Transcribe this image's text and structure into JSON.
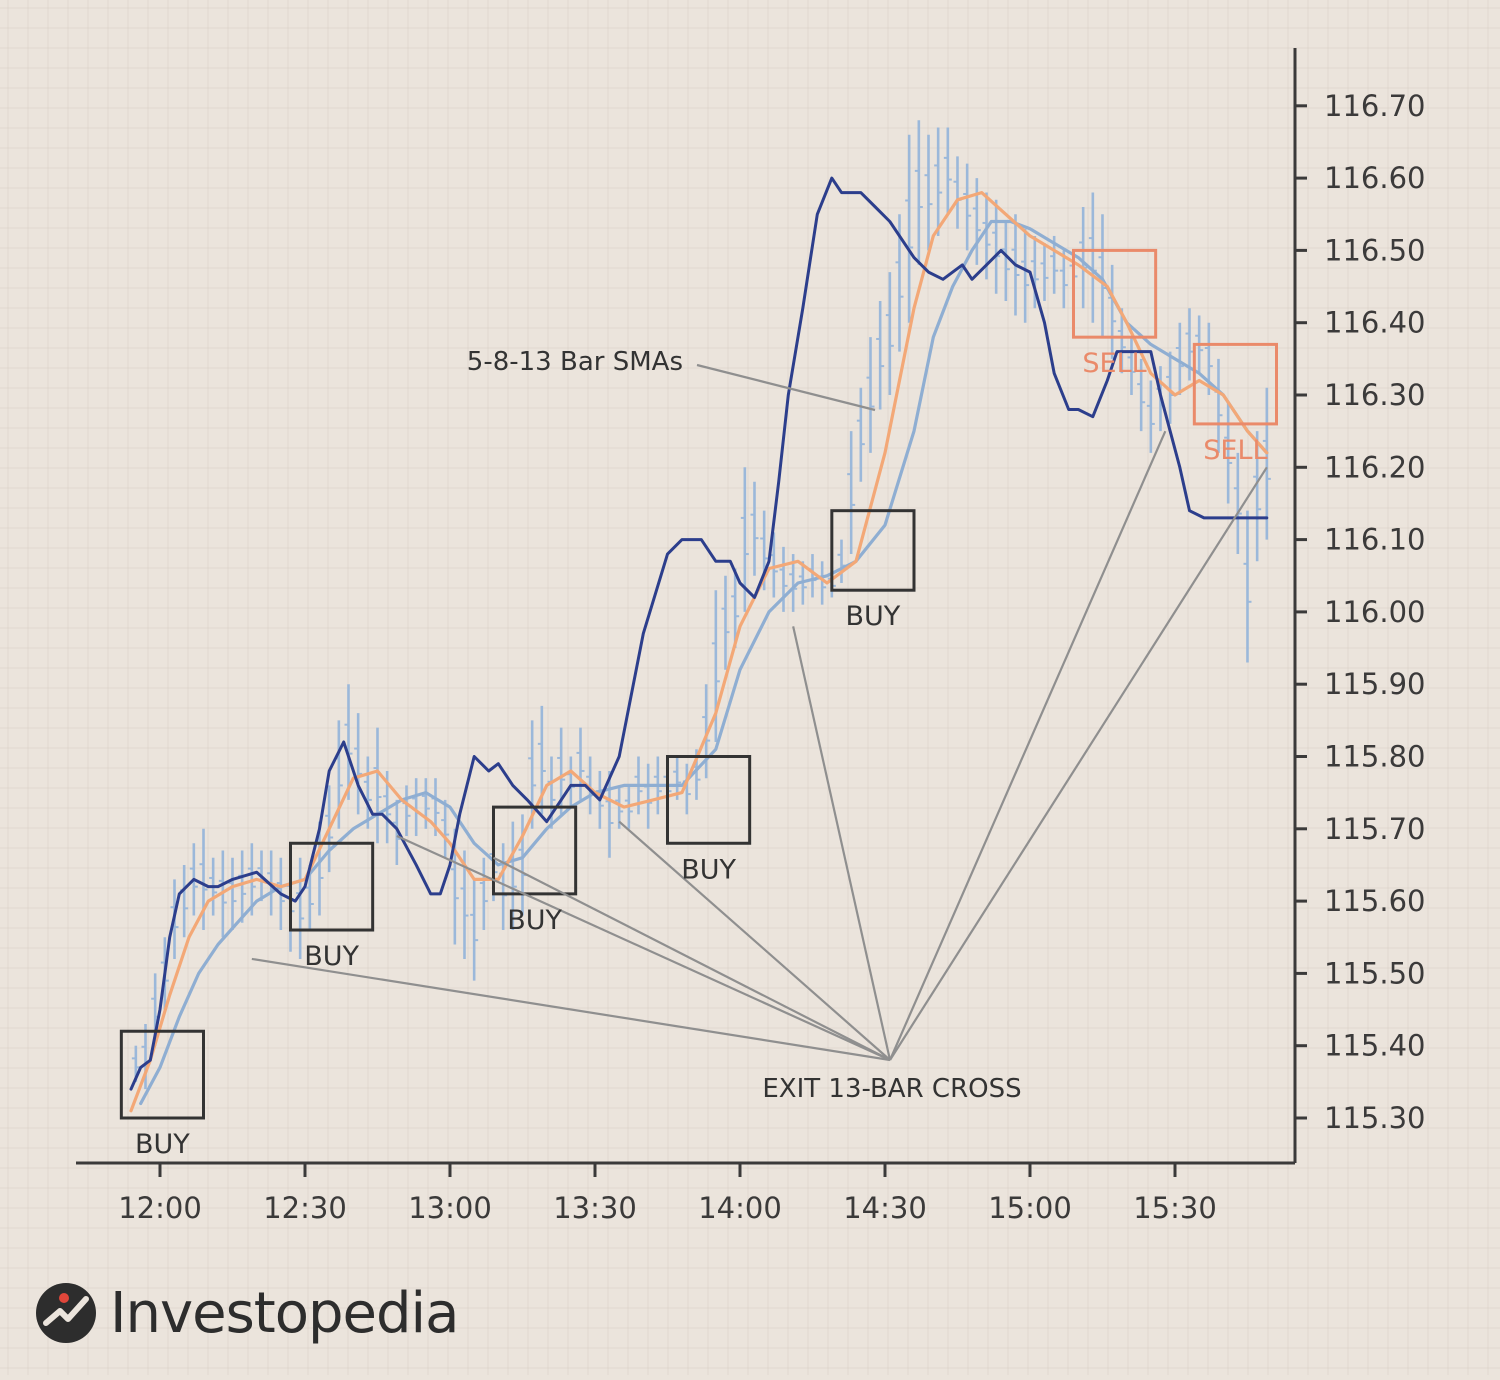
{
  "brand": {
    "name": "Investopedia",
    "logo_icon": "investopedia-logo-icon"
  },
  "colors": {
    "background": "#ebe4dc",
    "grid": "#d9d0c6",
    "sma5": "#2c3e8c",
    "sma8": "#f3a877",
    "sma13": "#8faed2",
    "bars": "#9bb8da",
    "buy": "#333333",
    "sell": "#ea8a6a",
    "leader": "#8f8f8f"
  },
  "chart_data": {
    "type": "line",
    "x_ticks": [
      "12:00",
      "12:30",
      "13:00",
      "13:30",
      "14:00",
      "14:30",
      "15:00",
      "15:30"
    ],
    "y_ticks": [
      "116.70",
      "116.60",
      "116.50",
      "116.40",
      "116.30",
      "116.20",
      "116.10",
      "116.00",
      "115.90",
      "115.80",
      "115.70",
      "115.60",
      "115.50",
      "115.40",
      "115.30"
    ],
    "ylim": [
      115.23,
      116.78
    ],
    "xlim": [
      "11:48",
      "15:53"
    ],
    "series": [
      {
        "name": "5-bar SMA",
        "color": "#2c3e8c",
        "x": [
          "11:54",
          "11:56",
          "11:58",
          "12:00",
          "12:02",
          "12:04",
          "12:07",
          "12:10",
          "12:12",
          "12:15",
          "12:20",
          "12:25",
          "12:28",
          "12:30",
          "12:33",
          "12:35",
          "12:38",
          "12:41",
          "12:44",
          "12:46",
          "12:49",
          "12:53",
          "12:56",
          "12:58",
          "13:00",
          "13:02",
          "13:05",
          "13:08",
          "13:10",
          "13:13",
          "13:16",
          "13:20",
          "13:23",
          "13:25",
          "13:28",
          "13:31",
          "13:35",
          "13:40",
          "13:45",
          "13:48",
          "13:52",
          "13:55",
          "13:58",
          "14:00",
          "14:03",
          "14:06",
          "14:08",
          "14:10",
          "14:13",
          "14:16",
          "14:19",
          "14:21",
          "14:25",
          "14:28",
          "14:31",
          "14:36",
          "14:39",
          "14:42",
          "14:44",
          "14:46",
          "14:48",
          "14:51",
          "14:54",
          "14:57",
          "15:00",
          "15:03",
          "15:05",
          "15:08",
          "15:10",
          "15:13",
          "15:16",
          "15:18",
          "15:21",
          "15:25",
          "15:27",
          "15:31",
          "15:33",
          "15:36",
          "15:38",
          "15:41",
          "15:43",
          "15:45",
          "15:47",
          "15:49"
        ],
        "y": [
          115.34,
          115.37,
          115.38,
          115.45,
          115.55,
          115.61,
          115.63,
          115.62,
          115.62,
          115.63,
          115.64,
          115.61,
          115.6,
          115.62,
          115.7,
          115.78,
          115.82,
          115.76,
          115.72,
          115.72,
          115.7,
          115.65,
          115.61,
          115.61,
          115.65,
          115.72,
          115.8,
          115.78,
          115.79,
          115.76,
          115.74,
          115.71,
          115.74,
          115.76,
          115.76,
          115.74,
          115.8,
          115.97,
          116.08,
          116.1,
          116.1,
          116.07,
          116.07,
          116.04,
          116.02,
          116.07,
          116.18,
          116.3,
          116.42,
          116.55,
          116.6,
          116.58,
          116.58,
          116.56,
          116.54,
          116.49,
          116.47,
          116.46,
          116.47,
          116.48,
          116.46,
          116.48,
          116.5,
          116.48,
          116.47,
          116.4,
          116.33,
          116.28,
          116.28,
          116.27,
          116.32,
          116.36,
          116.36,
          116.36,
          116.3,
          116.2,
          116.14,
          116.13,
          116.13,
          116.13,
          116.13,
          116.13,
          116.13,
          116.13
        ]
      },
      {
        "name": "8-bar SMA",
        "color": "#f3a877",
        "x": [
          "11:54",
          "11:58",
          "12:02",
          "12:06",
          "12:10",
          "12:15",
          "12:20",
          "12:25",
          "12:30",
          "12:35",
          "12:40",
          "12:45",
          "12:50",
          "12:56",
          "13:00",
          "13:05",
          "13:10",
          "13:15",
          "13:20",
          "13:25",
          "13:30",
          "13:36",
          "13:42",
          "13:48",
          "13:55",
          "14:00",
          "14:06",
          "14:12",
          "14:18",
          "14:24",
          "14:30",
          "14:36",
          "14:40",
          "14:45",
          "14:50",
          "14:55",
          "15:00",
          "15:05",
          "15:10",
          "15:16",
          "15:20",
          "15:25",
          "15:30",
          "15:35",
          "15:40",
          "15:45",
          "15:49"
        ],
        "y": [
          115.31,
          115.38,
          115.47,
          115.55,
          115.6,
          115.62,
          115.63,
          115.62,
          115.63,
          115.7,
          115.77,
          115.78,
          115.74,
          115.71,
          115.68,
          115.63,
          115.63,
          115.69,
          115.76,
          115.78,
          115.75,
          115.73,
          115.74,
          115.75,
          115.86,
          115.98,
          116.06,
          116.07,
          116.04,
          116.07,
          116.22,
          116.42,
          116.52,
          116.57,
          116.58,
          116.55,
          116.52,
          116.5,
          116.48,
          116.45,
          116.4,
          116.33,
          116.3,
          116.32,
          116.3,
          116.25,
          116.22
        ]
      },
      {
        "name": "13-bar SMA",
        "color": "#8faed2",
        "x": [
          "11:56",
          "12:00",
          "12:04",
          "12:08",
          "12:12",
          "12:16",
          "12:20",
          "12:25",
          "12:30",
          "12:35",
          "12:40",
          "12:45",
          "12:50",
          "12:55",
          "13:00",
          "13:05",
          "13:10",
          "13:15",
          "13:20",
          "13:25",
          "13:30",
          "13:36",
          "13:42",
          "13:48",
          "13:55",
          "14:00",
          "14:06",
          "14:12",
          "14:18",
          "14:24",
          "14:30",
          "14:36",
          "14:40",
          "14:44",
          "14:48",
          "14:52",
          "14:56",
          "15:00",
          "15:05",
          "15:10",
          "15:15",
          "15:20",
          "15:25",
          "15:30",
          "15:35",
          "15:40",
          "15:45",
          "15:49"
        ],
        "y": [
          115.32,
          115.37,
          115.44,
          115.5,
          115.54,
          115.57,
          115.6,
          115.62,
          115.63,
          115.67,
          115.7,
          115.72,
          115.74,
          115.75,
          115.73,
          115.68,
          115.65,
          115.66,
          115.7,
          115.73,
          115.75,
          115.76,
          115.76,
          115.76,
          115.81,
          115.92,
          116.0,
          116.04,
          116.05,
          116.07,
          116.12,
          116.25,
          116.38,
          116.45,
          116.5,
          116.54,
          116.54,
          116.53,
          116.51,
          116.49,
          116.46,
          116.4,
          116.37,
          116.35,
          116.33,
          116.3,
          116.25,
          116.22
        ]
      }
    ],
    "price_bars": [
      {
        "t": "11:55",
        "low": 115.35,
        "high": 115.4
      },
      {
        "t": "11:57",
        "low": 115.34,
        "high": 115.43
      },
      {
        "t": "11:59",
        "low": 115.4,
        "high": 115.5
      },
      {
        "t": "12:01",
        "low": 115.45,
        "high": 115.55
      },
      {
        "t": "12:03",
        "low": 115.52,
        "high": 115.63
      },
      {
        "t": "12:05",
        "low": 115.55,
        "high": 115.65
      },
      {
        "t": "12:07",
        "low": 115.58,
        "high": 115.68
      },
      {
        "t": "12:09",
        "low": 115.56,
        "high": 115.7
      },
      {
        "t": "12:11",
        "low": 115.58,
        "high": 115.66
      },
      {
        "t": "12:13",
        "low": 115.55,
        "high": 115.67
      },
      {
        "t": "12:15",
        "low": 115.56,
        "high": 115.66
      },
      {
        "t": "12:17",
        "low": 115.57,
        "high": 115.67
      },
      {
        "t": "12:19",
        "low": 115.58,
        "high": 115.68
      },
      {
        "t": "12:21",
        "low": 115.6,
        "high": 115.67
      },
      {
        "t": "12:23",
        "low": 115.58,
        "high": 115.67
      },
      {
        "t": "12:25",
        "low": 115.56,
        "high": 115.66
      },
      {
        "t": "12:27",
        "low": 115.53,
        "high": 115.67
      },
      {
        "t": "12:29",
        "low": 115.52,
        "high": 115.66
      },
      {
        "t": "12:31",
        "low": 115.56,
        "high": 115.65
      },
      {
        "t": "12:33",
        "low": 115.58,
        "high": 115.71
      },
      {
        "t": "12:35",
        "low": 115.64,
        "high": 115.76
      },
      {
        "t": "12:37",
        "low": 115.7,
        "high": 115.85
      },
      {
        "t": "12:39",
        "low": 115.74,
        "high": 115.9
      },
      {
        "t": "12:41",
        "low": 115.72,
        "high": 115.86
      },
      {
        "t": "12:43",
        "low": 115.7,
        "high": 115.8
      },
      {
        "t": "12:45",
        "low": 115.68,
        "high": 115.84
      },
      {
        "t": "12:47",
        "low": 115.68,
        "high": 115.78
      },
      {
        "t": "12:49",
        "low": 115.65,
        "high": 115.74
      },
      {
        "t": "12:51",
        "low": 115.69,
        "high": 115.76
      },
      {
        "t": "12:53",
        "low": 115.69,
        "high": 115.77
      },
      {
        "t": "12:55",
        "low": 115.7,
        "high": 115.77
      },
      {
        "t": "12:57",
        "low": 115.69,
        "high": 115.77
      },
      {
        "t": "12:59",
        "low": 115.66,
        "high": 115.74
      },
      {
        "t": "13:01",
        "low": 115.54,
        "high": 115.7
      },
      {
        "t": "13:03",
        "low": 115.52,
        "high": 115.67
      },
      {
        "t": "13:05",
        "low": 115.49,
        "high": 115.63
      },
      {
        "t": "13:07",
        "low": 115.56,
        "high": 115.66
      },
      {
        "t": "13:09",
        "low": 115.6,
        "high": 115.7
      },
      {
        "t": "13:11",
        "low": 115.56,
        "high": 115.68
      },
      {
        "t": "13:13",
        "low": 115.56,
        "high": 115.71
      },
      {
        "t": "13:15",
        "low": 115.58,
        "high": 115.72
      },
      {
        "t": "13:17",
        "low": 115.7,
        "high": 115.85
      },
      {
        "t": "13:19",
        "low": 115.72,
        "high": 115.87
      },
      {
        "t": "13:21",
        "low": 115.7,
        "high": 115.8
      },
      {
        "t": "13:23",
        "low": 115.72,
        "high": 115.84
      },
      {
        "t": "13:25",
        "low": 115.73,
        "high": 115.8
      },
      {
        "t": "13:27",
        "low": 115.74,
        "high": 115.84
      },
      {
        "t": "13:29",
        "low": 115.72,
        "high": 115.8
      },
      {
        "t": "13:31",
        "low": 115.7,
        "high": 115.78
      },
      {
        "t": "13:33",
        "low": 115.66,
        "high": 115.78
      },
      {
        "t": "13:35",
        "low": 115.7,
        "high": 115.76
      },
      {
        "t": "13:37",
        "low": 115.7,
        "high": 115.76
      },
      {
        "t": "13:39",
        "low": 115.72,
        "high": 115.8
      },
      {
        "t": "13:41",
        "low": 115.7,
        "high": 115.79
      },
      {
        "t": "13:43",
        "low": 115.72,
        "high": 115.8
      },
      {
        "t": "13:45",
        "low": 115.72,
        "high": 115.8
      },
      {
        "t": "13:47",
        "low": 115.74,
        "high": 115.8
      },
      {
        "t": "13:49",
        "low": 115.72,
        "high": 115.79
      },
      {
        "t": "13:51",
        "low": 115.74,
        "high": 115.81
      },
      {
        "t": "13:53",
        "low": 115.77,
        "high": 115.9
      },
      {
        "t": "13:55",
        "low": 115.82,
        "high": 116.03
      },
      {
        "t": "13:57",
        "low": 115.92,
        "high": 116.05
      },
      {
        "t": "13:59",
        "low": 115.95,
        "high": 116.06
      },
      {
        "t": "14:01",
        "low": 116.0,
        "high": 116.2
      },
      {
        "t": "14:03",
        "low": 116.05,
        "high": 116.18
      },
      {
        "t": "14:05",
        "low": 116.03,
        "high": 116.14
      },
      {
        "t": "14:07",
        "low": 116.02,
        "high": 116.11
      },
      {
        "t": "14:09",
        "low": 116.0,
        "high": 116.09
      },
      {
        "t": "14:11",
        "low": 116.0,
        "high": 116.08
      },
      {
        "t": "14:13",
        "low": 116.01,
        "high": 116.07
      },
      {
        "t": "14:15",
        "low": 116.02,
        "high": 116.08
      },
      {
        "t": "14:17",
        "low": 116.01,
        "high": 116.07
      },
      {
        "t": "14:19",
        "low": 116.02,
        "high": 116.06
      },
      {
        "t": "14:21",
        "low": 116.04,
        "high": 116.1
      },
      {
        "t": "14:23",
        "low": 116.08,
        "high": 116.25
      },
      {
        "t": "14:25",
        "low": 116.18,
        "high": 116.31
      },
      {
        "t": "14:27",
        "low": 116.22,
        "high": 116.38
      },
      {
        "t": "14:29",
        "low": 116.28,
        "high": 116.43
      },
      {
        "t": "14:31",
        "low": 116.3,
        "high": 116.47
      },
      {
        "t": "14:33",
        "low": 116.36,
        "high": 116.55
      },
      {
        "t": "14:35",
        "low": 116.4,
        "high": 116.66
      },
      {
        "t": "14:37",
        "low": 116.48,
        "high": 116.68
      },
      {
        "t": "14:39",
        "low": 116.5,
        "high": 116.66
      },
      {
        "t": "14:41",
        "low": 116.52,
        "high": 116.67
      },
      {
        "t": "14:43",
        "low": 116.55,
        "high": 116.67
      },
      {
        "t": "14:45",
        "low": 116.53,
        "high": 116.63
      },
      {
        "t": "14:47",
        "low": 116.5,
        "high": 116.62
      },
      {
        "t": "14:49",
        "low": 116.48,
        "high": 116.6
      },
      {
        "t": "14:51",
        "low": 116.46,
        "high": 116.58
      },
      {
        "t": "14:53",
        "low": 116.44,
        "high": 116.57
      },
      {
        "t": "14:55",
        "low": 116.43,
        "high": 116.54
      },
      {
        "t": "14:57",
        "low": 116.41,
        "high": 116.55
      },
      {
        "t": "14:59",
        "low": 116.4,
        "high": 116.53
      },
      {
        "t": "15:01",
        "low": 116.42,
        "high": 116.52
      },
      {
        "t": "15:03",
        "low": 116.43,
        "high": 116.51
      },
      {
        "t": "15:05",
        "low": 116.44,
        "high": 116.52
      },
      {
        "t": "15:07",
        "low": 116.42,
        "high": 116.5
      },
      {
        "t": "15:09",
        "low": 116.44,
        "high": 116.5
      },
      {
        "t": "15:11",
        "low": 116.42,
        "high": 116.56
      },
      {
        "t": "15:13",
        "low": 116.4,
        "high": 116.58
      },
      {
        "t": "15:15",
        "low": 116.38,
        "high": 116.55
      },
      {
        "t": "15:17",
        "low": 116.35,
        "high": 116.48
      },
      {
        "t": "15:19",
        "low": 116.33,
        "high": 116.42
      },
      {
        "t": "15:21",
        "low": 116.3,
        "high": 116.38
      },
      {
        "t": "15:23",
        "low": 116.25,
        "high": 116.35
      },
      {
        "t": "15:25",
        "low": 116.22,
        "high": 116.32
      },
      {
        "t": "15:27",
        "low": 116.25,
        "high": 116.34
      },
      {
        "t": "15:29",
        "low": 116.26,
        "high": 116.36
      },
      {
        "t": "15:31",
        "low": 116.3,
        "high": 116.4
      },
      {
        "t": "15:33",
        "low": 116.32,
        "high": 116.42
      },
      {
        "t": "15:35",
        "low": 116.33,
        "high": 116.41
      },
      {
        "t": "15:37",
        "low": 116.3,
        "high": 116.4
      },
      {
        "t": "15:39",
        "low": 116.22,
        "high": 116.35
      },
      {
        "t": "15:41",
        "low": 116.15,
        "high": 116.29
      },
      {
        "t": "15:43",
        "low": 116.08,
        "high": 116.22
      },
      {
        "t": "15:45",
        "low": 115.93,
        "high": 116.14
      },
      {
        "t": "15:47",
        "low": 116.07,
        "high": 116.25
      },
      {
        "t": "15:49",
        "low": 116.1,
        "high": 116.31
      }
    ],
    "signals": [
      {
        "label": "BUY",
        "type": "buy",
        "t0": "11:52",
        "t1": "12:09",
        "low": 115.3,
        "high": 115.42
      },
      {
        "label": "BUY",
        "type": "buy",
        "t0": "12:27",
        "t1": "12:44",
        "low": 115.56,
        "high": 115.68
      },
      {
        "label": "BUY",
        "type": "buy",
        "t0": "13:09",
        "t1": "13:26",
        "low": 115.61,
        "high": 115.73
      },
      {
        "label": "BUY",
        "type": "buy",
        "t0": "13:45",
        "t1": "14:02",
        "low": 115.68,
        "high": 115.8
      },
      {
        "label": "BUY",
        "type": "buy",
        "t0": "14:19",
        "t1": "14:36",
        "low": 116.03,
        "high": 116.14
      },
      {
        "label": "SELL",
        "type": "sell",
        "t0": "15:09",
        "t1": "15:26",
        "low": 116.38,
        "high": 116.5
      },
      {
        "label": "SELL",
        "type": "sell",
        "t0": "15:34",
        "t1": "15:51",
        "low": 116.26,
        "high": 116.37
      }
    ],
    "annotations": {
      "sma_label": "5-8-13 Bar SMAs",
      "exit_label": "EXIT 13-BAR CROSS",
      "exit_pointer_times": [
        "12:19",
        "12:49",
        "13:09",
        "13:35",
        "14:11",
        "15:28",
        "15:49"
      ],
      "exit_pointer_prices": [
        115.52,
        115.69,
        115.66,
        115.71,
        115.98,
        116.25,
        116.2
      ]
    },
    "grid": true
  }
}
